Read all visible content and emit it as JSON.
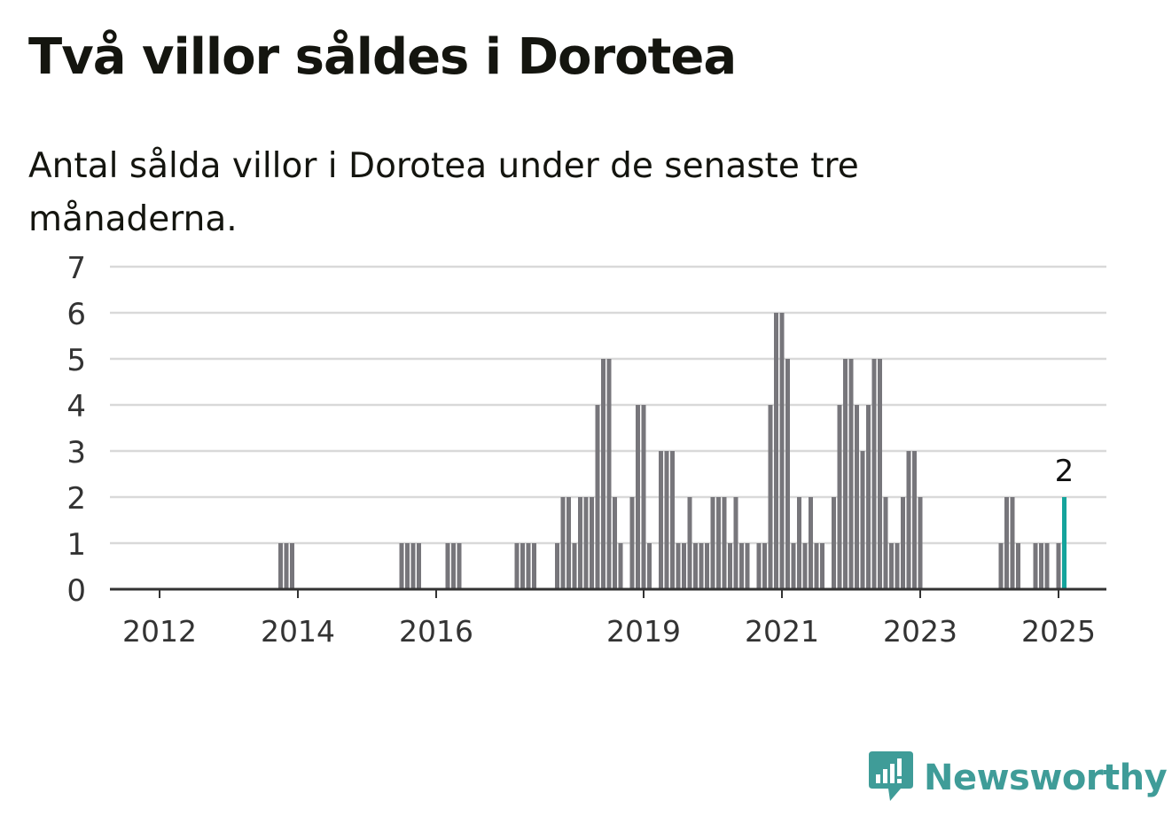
{
  "title": "Två villor såldes i Dorotea",
  "subtitle": "Antal sålda villor i Dorotea under de senaste tre månaderna.",
  "brand": {
    "name": "Newsworthy",
    "color": "#3f9c98",
    "icon": "newsworthy-logo-icon"
  },
  "colors": {
    "bar": "#77767b",
    "highlight": "#15a49c",
    "grid": "#d9d9d9",
    "axis": "#333333"
  },
  "chart_data": {
    "type": "bar",
    "xlabel": "",
    "ylabel": "",
    "ylim": [
      0,
      7
    ],
    "yticks": [
      "0",
      "1",
      "2",
      "3",
      "4",
      "5",
      "6",
      "7"
    ],
    "grid": true,
    "xticks": [
      {
        "label": "2012",
        "date": "2012-01"
      },
      {
        "label": "2014",
        "date": "2014-01"
      },
      {
        "label": "2016",
        "date": "2016-01"
      },
      {
        "label": "2019",
        "date": "2019-01"
      },
      {
        "label": "2021",
        "date": "2021-01"
      },
      {
        "label": "2023",
        "date": "2023-01"
      },
      {
        "label": "2025",
        "date": "2025-01"
      }
    ],
    "bars": [
      {
        "date": "2013-10",
        "value": 1
      },
      {
        "date": "2013-11",
        "value": 1
      },
      {
        "date": "2013-12",
        "value": 1
      },
      {
        "date": "2015-07",
        "value": 1
      },
      {
        "date": "2015-08",
        "value": 1
      },
      {
        "date": "2015-09",
        "value": 1
      },
      {
        "date": "2015-10",
        "value": 1
      },
      {
        "date": "2016-03",
        "value": 1
      },
      {
        "date": "2016-04",
        "value": 1
      },
      {
        "date": "2016-05",
        "value": 1
      },
      {
        "date": "2017-03",
        "value": 1
      },
      {
        "date": "2017-04",
        "value": 1
      },
      {
        "date": "2017-05",
        "value": 1
      },
      {
        "date": "2017-06",
        "value": 1
      },
      {
        "date": "2017-10",
        "value": 1
      },
      {
        "date": "2017-11",
        "value": 2
      },
      {
        "date": "2017-12",
        "value": 2
      },
      {
        "date": "2018-01",
        "value": 1
      },
      {
        "date": "2018-02",
        "value": 2
      },
      {
        "date": "2018-03",
        "value": 2
      },
      {
        "date": "2018-04",
        "value": 2
      },
      {
        "date": "2018-05",
        "value": 4
      },
      {
        "date": "2018-06",
        "value": 5
      },
      {
        "date": "2018-07",
        "value": 5
      },
      {
        "date": "2018-08",
        "value": 2
      },
      {
        "date": "2018-09",
        "value": 1
      },
      {
        "date": "2018-11",
        "value": 2
      },
      {
        "date": "2018-12",
        "value": 4
      },
      {
        "date": "2019-01",
        "value": 4
      },
      {
        "date": "2019-02",
        "value": 1
      },
      {
        "date": "2019-04",
        "value": 3
      },
      {
        "date": "2019-05",
        "value": 3
      },
      {
        "date": "2019-06",
        "value": 3
      },
      {
        "date": "2019-07",
        "value": 1
      },
      {
        "date": "2019-08",
        "value": 1
      },
      {
        "date": "2019-09",
        "value": 2
      },
      {
        "date": "2019-10",
        "value": 1
      },
      {
        "date": "2019-11",
        "value": 1
      },
      {
        "date": "2019-12",
        "value": 1
      },
      {
        "date": "2020-01",
        "value": 2
      },
      {
        "date": "2020-02",
        "value": 2
      },
      {
        "date": "2020-03",
        "value": 2
      },
      {
        "date": "2020-04",
        "value": 1
      },
      {
        "date": "2020-05",
        "value": 2
      },
      {
        "date": "2020-06",
        "value": 1
      },
      {
        "date": "2020-07",
        "value": 1
      },
      {
        "date": "2020-09",
        "value": 1
      },
      {
        "date": "2020-10",
        "value": 1
      },
      {
        "date": "2020-11",
        "value": 4
      },
      {
        "date": "2020-12",
        "value": 6
      },
      {
        "date": "2021-01",
        "value": 6
      },
      {
        "date": "2021-02",
        "value": 5
      },
      {
        "date": "2021-03",
        "value": 1
      },
      {
        "date": "2021-04",
        "value": 2
      },
      {
        "date": "2021-05",
        "value": 1
      },
      {
        "date": "2021-06",
        "value": 2
      },
      {
        "date": "2021-07",
        "value": 1
      },
      {
        "date": "2021-08",
        "value": 1
      },
      {
        "date": "2021-10",
        "value": 2
      },
      {
        "date": "2021-11",
        "value": 4
      },
      {
        "date": "2021-12",
        "value": 5
      },
      {
        "date": "2022-01",
        "value": 5
      },
      {
        "date": "2022-02",
        "value": 4
      },
      {
        "date": "2022-03",
        "value": 3
      },
      {
        "date": "2022-04",
        "value": 4
      },
      {
        "date": "2022-05",
        "value": 5
      },
      {
        "date": "2022-06",
        "value": 5
      },
      {
        "date": "2022-07",
        "value": 2
      },
      {
        "date": "2022-08",
        "value": 1
      },
      {
        "date": "2022-09",
        "value": 1
      },
      {
        "date": "2022-10",
        "value": 2
      },
      {
        "date": "2022-11",
        "value": 3
      },
      {
        "date": "2022-12",
        "value": 3
      },
      {
        "date": "2023-01",
        "value": 2
      },
      {
        "date": "2024-03",
        "value": 1
      },
      {
        "date": "2024-04",
        "value": 2
      },
      {
        "date": "2024-05",
        "value": 2
      },
      {
        "date": "2024-06",
        "value": 1
      },
      {
        "date": "2024-09",
        "value": 1
      },
      {
        "date": "2024-10",
        "value": 1
      },
      {
        "date": "2024-11",
        "value": 1
      },
      {
        "date": "2025-01",
        "value": 1
      },
      {
        "date": "2025-02",
        "value": 2,
        "highlight": true
      }
    ],
    "annotations": [
      {
        "date": "2025-02",
        "label": "2"
      }
    ]
  }
}
